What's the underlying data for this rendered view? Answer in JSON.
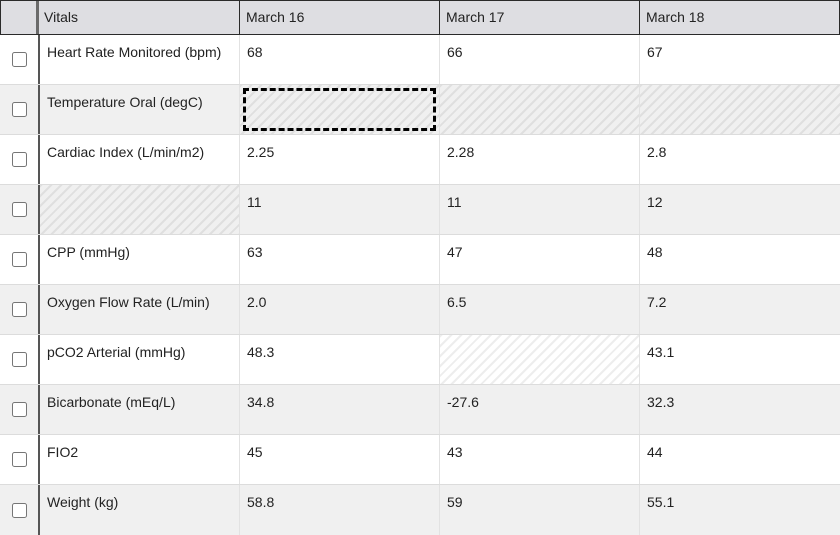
{
  "header": {
    "vitals_label": "Vitals",
    "dates": [
      "March 16",
      "March 17",
      "March 18"
    ]
  },
  "rows": [
    {
      "label": "Heart Rate Monitored (bpm)",
      "values": [
        "68",
        "66",
        "67"
      ]
    },
    {
      "label": "Temperature Oral (degC)",
      "values": [
        "",
        "",
        ""
      ]
    },
    {
      "label": "Cardiac Index (L/min/m2)",
      "values": [
        "2.25",
        "2.28",
        "2.8"
      ]
    },
    {
      "label": "",
      "values": [
        "11",
        "11",
        "12"
      ]
    },
    {
      "label": "CPP (mmHg)",
      "values": [
        "63",
        "47",
        "48"
      ]
    },
    {
      "label": "Oxygen Flow Rate (L/min)",
      "values": [
        "2.0",
        "6.5",
        "7.2"
      ]
    },
    {
      "label": "pCO2 Arterial (mmHg)",
      "values": [
        "48.3",
        "",
        "43.1"
      ]
    },
    {
      "label": "Bicarbonate (mEq/L)",
      "values": [
        "34.8",
        "-27.6",
        "32.3"
      ]
    },
    {
      "label": "FIO2",
      "values": [
        "45",
        "43",
        "44"
      ]
    },
    {
      "label": "Weight (kg)",
      "values": [
        "58.8",
        "59",
        "55.1"
      ]
    }
  ],
  "colors": {
    "header_bg": "#dedee2",
    "alt_row_bg": "#f0f0f0",
    "grid_border": "#2a2a2a"
  }
}
